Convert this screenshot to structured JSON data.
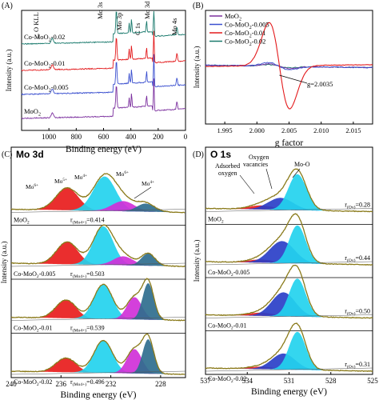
{
  "chart_data": [
    {
      "panel": "A",
      "type": "line",
      "panel_label": "(A)",
      "title": "",
      "xlabel": "Binding energy (eV)",
      "ylabel": "Intensity (a.u.)",
      "xlim": [
        1200,
        0
      ],
      "xticks": [
        1000,
        800,
        600,
        400,
        200,
        0
      ],
      "peak_labels": [
        {
          "text": "O KLL",
          "x": 975
        },
        {
          "text": "Mo 3s",
          "x": 506
        },
        {
          "text": "Mo 3p",
          "x": 400
        },
        {
          "text": "C 1s",
          "x": 285
        },
        {
          "text": "Mo 3d",
          "x": 230
        },
        {
          "text": "Mo 4s",
          "x": 63
        }
      ],
      "series": [
        {
          "name": "Co-MoO2-0.02",
          "label_main": "Co-MoO",
          "label_sub": "2",
          "label_tail": "-0.02",
          "color": "#1a7a6d"
        },
        {
          "name": "Co-MoO2-0.01",
          "label_main": "Co-MoO",
          "label_sub": "2",
          "label_tail": "-0.01",
          "color": "#e31a1c"
        },
        {
          "name": "Co-MoO2-0.005",
          "label_main": "Co-MoO",
          "label_sub": "2",
          "label_tail": "-0.005",
          "color": "#3a4fcf"
        },
        {
          "name": "MoO2",
          "label_main": "MoO",
          "label_sub": "2",
          "label_tail": "",
          "color": "#7b2f9e"
        }
      ]
    },
    {
      "panel": "B",
      "type": "line",
      "panel_label": "(B)",
      "title": "",
      "xlabel": "g factor",
      "ylabel": "Intensity (a.u.)",
      "xlim": [
        1.992,
        2.018
      ],
      "xticks": [
        1.995,
        2.0,
        2.005,
        2.01,
        2.015
      ],
      "xtick_labels": [
        "1.995",
        "2.000",
        "2.005",
        "2.010",
        "2.015"
      ],
      "annotation": "g=2.0035",
      "legend_position": "top-left",
      "series": [
        {
          "name": "MoO2",
          "label_main": "MoO",
          "label_sub": "2",
          "label_tail": "",
          "color": "#7b2f9e",
          "amplitude": 0.03
        },
        {
          "name": "Co-MoO2-0.005",
          "label_main": "Co-MoO",
          "label_sub": "2",
          "label_tail": "-0.005",
          "color": "#3a4fcf",
          "amplitude": 0.05
        },
        {
          "name": "Co-MoO2-0.01",
          "label_main": "Co-MoO",
          "label_sub": "2",
          "label_tail": "-0.01",
          "color": "#e31a1c",
          "amplitude": 1.0
        },
        {
          "name": "Co-MoO2-0.02",
          "label_main": "Co-MoO",
          "label_sub": "2",
          "label_tail": "-0.02",
          "color": "#1a7a6d",
          "amplitude": 0.02
        }
      ]
    },
    {
      "panel": "C",
      "type": "area",
      "panel_label": "(C)",
      "title": "Mo 3d",
      "xlabel": "Binding energy (eV)",
      "ylabel": "Intensity (a.u.)",
      "xlim": [
        240,
        226
      ],
      "xticks": [
        240,
        236,
        232,
        228
      ],
      "peak_labels": [
        {
          "text": "Mo",
          "sup": "6+"
        },
        {
          "text": "Mo",
          "sup": "5+"
        },
        {
          "text": "Mo",
          "sup": "4+"
        },
        {
          "text": "Mo",
          "sup": "6+"
        },
        {
          "text": "Mo",
          "sup": "4+"
        }
      ],
      "component_colors": [
        "#e81c1c",
        "#23d3ee",
        "#d030d8",
        "#2f6e8e"
      ],
      "envelope_color": "#8a7a1a",
      "samples": [
        {
          "name_main": "MoO",
          "name_sub": "2",
          "name_tail": "",
          "ratio_prefix": "r",
          "ratio_sub": "(Mo4+)",
          "ratio_value": "=0.414",
          "components": [
            [
              235.5,
              0.55,
              0.9
            ],
            [
              232.5,
              0.85,
              0.9
            ],
            [
              231.0,
              0.25,
              0.9
            ],
            [
              229.2,
              0.2,
              0.7
            ]
          ]
        },
        {
          "name_main": "Co-MoO",
          "name_sub": "2",
          "name_tail": "-0.005",
          "ratio_prefix": "r",
          "ratio_sub": "(Mo4+)",
          "ratio_value": "=0.503",
          "components": [
            [
              235.5,
              0.55,
              0.85
            ],
            [
              232.6,
              0.95,
              0.8
            ],
            [
              231.0,
              0.22,
              0.8
            ],
            [
              229.0,
              0.3,
              0.55
            ]
          ]
        },
        {
          "name_main": "Co-MoO",
          "name_sub": "2",
          "name_tail": "-0.01",
          "ratio_prefix": "r",
          "ratio_sub": "(Mo4+)",
          "ratio_value": "=0.539",
          "components": [
            [
              235.6,
              0.45,
              0.8
            ],
            [
              232.6,
              0.85,
              0.75
            ],
            [
              230.1,
              0.55,
              0.6
            ],
            [
              229.0,
              0.9,
              0.45
            ]
          ]
        },
        {
          "name_main": "Co-MoO",
          "name_sub": "2",
          "name_tail": "-0.02",
          "ratio_prefix": "r",
          "ratio_sub": "(Mo4+)",
          "ratio_value": "=0.496",
          "components": [
            [
              235.6,
              0.35,
              0.8
            ],
            [
              232.6,
              0.8,
              0.75
            ],
            [
              230.1,
              0.6,
              0.6
            ],
            [
              229.0,
              0.85,
              0.45
            ]
          ]
        }
      ]
    },
    {
      "panel": "D",
      "type": "area",
      "panel_label": "(D)",
      "title": "O 1s",
      "xlabel": "Binding energy (eV)",
      "ylabel": "Intensity (a.u.)",
      "xlim": [
        537,
        525
      ],
      "xticks": [
        537,
        534,
        531,
        528,
        525
      ],
      "peak_labels": [
        {
          "text": "Adsorbed oxygen"
        },
        {
          "text": "Oxygen vacancies"
        },
        {
          "text": "Mo-O"
        }
      ],
      "component_colors": [
        "#e81c1c",
        "#2a3fc8",
        "#23d3ee"
      ],
      "envelope_color": "#8a7a1a",
      "samples": [
        {
          "name_main": "MoO",
          "name_sub": "2",
          "name_tail": "",
          "ratio_prefix": "r",
          "ratio_sub": "(Ov)",
          "ratio_value": "=0.28",
          "components": [
            [
              533.0,
              0.1,
              0.9
            ],
            [
              531.6,
              0.3,
              0.9
            ],
            [
              530.4,
              0.9,
              0.65
            ]
          ]
        },
        {
          "name_main": "Co-MoO",
          "name_sub": "2",
          "name_tail": "-0.005",
          "ratio_prefix": "r",
          "ratio_sub": "(Ov)",
          "ratio_value": "=0.44",
          "components": [
            [
              533.0,
              0.08,
              0.9
            ],
            [
              531.5,
              0.55,
              0.9
            ],
            [
              530.4,
              0.95,
              0.6
            ]
          ]
        },
        {
          "name_main": "Co-MoO",
          "name_sub": "2",
          "name_tail": "-0.01",
          "ratio_prefix": "r",
          "ratio_sub": "(Ov)",
          "ratio_value": "=0.50",
          "components": [
            [
              533.0,
              0.08,
              0.9
            ],
            [
              531.4,
              0.6,
              0.85
            ],
            [
              530.4,
              0.95,
              0.6
            ]
          ]
        },
        {
          "name_main": "Co-MoO",
          "name_sub": "2",
          "name_tail": "-0.02",
          "ratio_prefix": "r",
          "ratio_sub": "(Ov)",
          "ratio_value": "=0.31",
          "components": [
            [
              533.0,
              0.06,
              0.9
            ],
            [
              531.4,
              0.4,
              0.85
            ],
            [
              530.4,
              0.95,
              0.6
            ]
          ]
        }
      ]
    }
  ]
}
